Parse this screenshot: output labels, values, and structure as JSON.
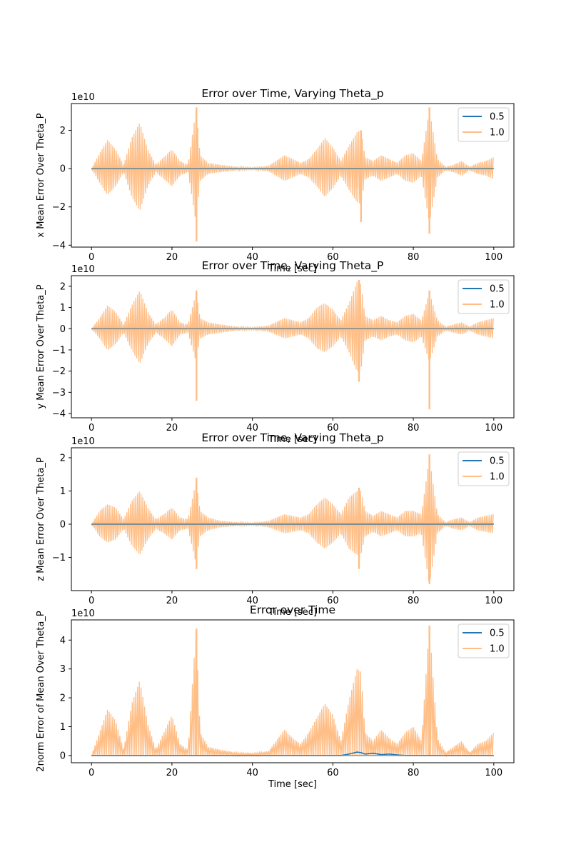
{
  "chart_data": [
    {
      "type": "line",
      "title": "Error over Time, Varying Theta_p",
      "xlabel": "Time [sec]",
      "ylabel": "x Mean Error Over Theta_P",
      "offset_label": "1e10",
      "xlim": [
        -5,
        105
      ],
      "ylim": [
        -4.1,
        3.4
      ],
      "x_ticks": [
        0,
        20,
        40,
        60,
        80,
        100
      ],
      "y_ticks": [
        -4,
        -2,
        0,
        2
      ],
      "legend_position": "upper right",
      "series": [
        {
          "name": "0.5",
          "color": "#1f77b4",
          "envelope": [
            [
              0,
              0
            ],
            [
              100,
              0
            ]
          ]
        },
        {
          "name": "1.0",
          "color": "#ffbe86",
          "envelope": [
            [
              0,
              0
            ],
            [
              2,
              0.8
            ],
            [
              4,
              1.5
            ],
            [
              6,
              1.0
            ],
            [
              8,
              0.2
            ],
            [
              10,
              1.6
            ],
            [
              12,
              2.4
            ],
            [
              14,
              1.0
            ],
            [
              16,
              0.2
            ],
            [
              18,
              0.6
            ],
            [
              20,
              1.0
            ],
            [
              22,
              0.4
            ],
            [
              24,
              0.2
            ],
            [
              26,
              3.1
            ],
            [
              27,
              0.7
            ],
            [
              29,
              0.3
            ],
            [
              32,
              0.2
            ],
            [
              36,
              0.1
            ],
            [
              40,
              0.05
            ],
            [
              44,
              0.15
            ],
            [
              48,
              0.7
            ],
            [
              50,
              0.5
            ],
            [
              52,
              0.3
            ],
            [
              54,
              0.5
            ],
            [
              56,
              1.0
            ],
            [
              58,
              1.6
            ],
            [
              60,
              1.1
            ],
            [
              62,
              0.4
            ],
            [
              64,
              1.2
            ],
            [
              66,
              1.9
            ],
            [
              67,
              2.0
            ],
            [
              68,
              0.6
            ],
            [
              70,
              0.4
            ],
            [
              72,
              0.7
            ],
            [
              74,
              0.5
            ],
            [
              76,
              0.3
            ],
            [
              78,
              0.7
            ],
            [
              80,
              0.8
            ],
            [
              82,
              0.4
            ],
            [
              84,
              3.1
            ],
            [
              86,
              0.5
            ],
            [
              88,
              0.1
            ],
            [
              90,
              0.2
            ],
            [
              92,
              0.4
            ],
            [
              94,
              0.1
            ],
            [
              96,
              0.3
            ],
            [
              98,
              0.4
            ],
            [
              100,
              0.6
            ]
          ]
        }
      ],
      "spikes": [
        {
          "x": 26.1,
          "top": 3.2,
          "bottom": -3.8
        },
        {
          "x": 84.0,
          "top": 3.2,
          "bottom": -3.4
        },
        {
          "x": 67.0,
          "top": 2.0,
          "bottom": -2.8
        }
      ]
    },
    {
      "type": "line",
      "title": "Error over Time, Varying Theta_P",
      "xlabel": "Time [sec]",
      "ylabel": "y Mean Error Over Theta_P",
      "offset_label": "1e10",
      "xlim": [
        -5,
        105
      ],
      "ylim": [
        -4.2,
        2.5
      ],
      "x_ticks": [
        0,
        20,
        40,
        60,
        80,
        100
      ],
      "y_ticks": [
        -4,
        -3,
        -2,
        -1,
        0,
        1,
        2
      ],
      "legend_position": "upper right",
      "series": [
        {
          "name": "0.5",
          "color": "#1f77b4",
          "envelope": [
            [
              0,
              0
            ],
            [
              100,
              0
            ]
          ]
        },
        {
          "name": "1.0",
          "color": "#ffbe86",
          "envelope": [
            [
              0,
              0
            ],
            [
              2,
              0.5
            ],
            [
              4,
              1.1
            ],
            [
              6,
              0.8
            ],
            [
              8,
              0.2
            ],
            [
              10,
              1.1
            ],
            [
              12,
              1.8
            ],
            [
              14,
              0.8
            ],
            [
              16,
              0.2
            ],
            [
              18,
              0.5
            ],
            [
              20,
              0.9
            ],
            [
              22,
              0.3
            ],
            [
              24,
              0.2
            ],
            [
              26,
              1.7
            ],
            [
              27,
              0.5
            ],
            [
              29,
              0.3
            ],
            [
              32,
              0.2
            ],
            [
              36,
              0.1
            ],
            [
              40,
              0.05
            ],
            [
              44,
              0.15
            ],
            [
              48,
              0.5
            ],
            [
              50,
              0.4
            ],
            [
              52,
              0.3
            ],
            [
              54,
              0.5
            ],
            [
              56,
              1.0
            ],
            [
              58,
              1.2
            ],
            [
              60,
              0.9
            ],
            [
              62,
              0.4
            ],
            [
              64,
              1.2
            ],
            [
              66,
              2.2
            ],
            [
              67,
              2.1
            ],
            [
              68,
              0.6
            ],
            [
              70,
              0.4
            ],
            [
              72,
              0.6
            ],
            [
              74,
              0.4
            ],
            [
              76,
              0.3
            ],
            [
              78,
              0.6
            ],
            [
              80,
              0.7
            ],
            [
              82,
              0.4
            ],
            [
              84,
              1.7
            ],
            [
              86,
              0.4
            ],
            [
              88,
              0.1
            ],
            [
              90,
              0.2
            ],
            [
              92,
              0.3
            ],
            [
              94,
              0.1
            ],
            [
              96,
              0.3
            ],
            [
              98,
              0.4
            ],
            [
              100,
              0.5
            ]
          ]
        }
      ],
      "spikes": [
        {
          "x": 26.1,
          "top": 1.8,
          "bottom": -3.4
        },
        {
          "x": 84.0,
          "top": 1.8,
          "bottom": -3.8
        },
        {
          "x": 66.5,
          "top": 2.3,
          "bottom": -2.5
        }
      ]
    },
    {
      "type": "line",
      "title": "Error over Time, Varying Theta_p",
      "xlabel": "Time [sec]",
      "ylabel": "z Mean Error Over Theta_P",
      "offset_label": "1e10",
      "xlim": [
        -5,
        105
      ],
      "ylim": [
        -2.0,
        2.3
      ],
      "x_ticks": [
        0,
        20,
        40,
        60,
        80,
        100
      ],
      "y_ticks": [
        -1,
        0,
        1,
        2
      ],
      "legend_position": "upper right",
      "series": [
        {
          "name": "0.5",
          "color": "#1f77b4",
          "envelope": [
            [
              0,
              0
            ],
            [
              100,
              0
            ]
          ]
        },
        {
          "name": "1.0",
          "color": "#ffbe86",
          "envelope": [
            [
              0,
              0
            ],
            [
              2,
              0.4
            ],
            [
              4,
              0.6
            ],
            [
              6,
              0.5
            ],
            [
              8,
              0.15
            ],
            [
              10,
              0.7
            ],
            [
              12,
              1.0
            ],
            [
              14,
              0.5
            ],
            [
              16,
              0.15
            ],
            [
              18,
              0.3
            ],
            [
              20,
              0.5
            ],
            [
              22,
              0.2
            ],
            [
              24,
              0.15
            ],
            [
              26,
              1.3
            ],
            [
              27,
              0.4
            ],
            [
              29,
              0.2
            ],
            [
              32,
              0.1
            ],
            [
              36,
              0.06
            ],
            [
              40,
              0.03
            ],
            [
              44,
              0.1
            ],
            [
              48,
              0.3
            ],
            [
              50,
              0.25
            ],
            [
              52,
              0.2
            ],
            [
              54,
              0.3
            ],
            [
              56,
              0.6
            ],
            [
              58,
              0.8
            ],
            [
              60,
              0.6
            ],
            [
              62,
              0.3
            ],
            [
              64,
              0.8
            ],
            [
              66,
              1.0
            ],
            [
              67,
              1.0
            ],
            [
              68,
              0.4
            ],
            [
              70,
              0.25
            ],
            [
              72,
              0.4
            ],
            [
              74,
              0.3
            ],
            [
              76,
              0.2
            ],
            [
              78,
              0.4
            ],
            [
              80,
              0.4
            ],
            [
              82,
              0.3
            ],
            [
              84,
              2.0
            ],
            [
              86,
              0.3
            ],
            [
              88,
              0.06
            ],
            [
              90,
              0.15
            ],
            [
              92,
              0.2
            ],
            [
              94,
              0.06
            ],
            [
              96,
              0.2
            ],
            [
              98,
              0.25
            ],
            [
              100,
              0.3
            ]
          ]
        }
      ],
      "spikes": [
        {
          "x": 26.1,
          "top": 1.4,
          "bottom": -1.35
        },
        {
          "x": 84.0,
          "top": 2.1,
          "bottom": -1.8
        },
        {
          "x": 66.5,
          "top": 1.1,
          "bottom": -1.35
        }
      ]
    },
    {
      "type": "line",
      "title": "Error over Time",
      "xlabel": "Time [sec]",
      "ylabel": "2norm Error of Mean Over Theta_P",
      "offset_label": "1e10",
      "xlim": [
        -5,
        105
      ],
      "ylim": [
        -0.25,
        4.7
      ],
      "x_ticks": [
        0,
        20,
        40,
        60,
        80,
        100
      ],
      "y_ticks": [
        0,
        1,
        2,
        3,
        4
      ],
      "legend_position": "upper right",
      "series": [
        {
          "name": "0.5",
          "color": "#1f77b4",
          "envelope": [
            [
              0,
              0
            ],
            [
              62,
              0
            ],
            [
              64,
              0.05
            ],
            [
              66,
              0.12
            ],
            [
              67,
              0.1
            ],
            [
              68,
              0.05
            ],
            [
              70,
              0.08
            ],
            [
              72,
              0.03
            ],
            [
              74,
              0.05
            ],
            [
              76,
              0.02
            ],
            [
              78,
              0
            ],
            [
              100,
              0
            ]
          ]
        },
        {
          "name": "1.0",
          "color": "#ffbe86",
          "envelope": [
            [
              0,
              0
            ],
            [
              2,
              0.8
            ],
            [
              4,
              1.6
            ],
            [
              6,
              1.2
            ],
            [
              8,
              0.2
            ],
            [
              10,
              1.8
            ],
            [
              12,
              2.6
            ],
            [
              14,
              1.1
            ],
            [
              16,
              0.2
            ],
            [
              18,
              0.8
            ],
            [
              20,
              1.4
            ],
            [
              22,
              0.4
            ],
            [
              24,
              0.2
            ],
            [
              26,
              4.4
            ],
            [
              27,
              0.8
            ],
            [
              29,
              0.3
            ],
            [
              32,
              0.2
            ],
            [
              36,
              0.1
            ],
            [
              40,
              0.07
            ],
            [
              44,
              0.15
            ],
            [
              48,
              0.9
            ],
            [
              50,
              0.6
            ],
            [
              52,
              0.4
            ],
            [
              54,
              0.8
            ],
            [
              56,
              1.3
            ],
            [
              58,
              1.8
            ],
            [
              60,
              1.4
            ],
            [
              62,
              0.5
            ],
            [
              64,
              1.9
            ],
            [
              66,
              3.0
            ],
            [
              67,
              2.9
            ],
            [
              68,
              0.8
            ],
            [
              70,
              0.5
            ],
            [
              72,
              0.9
            ],
            [
              74,
              0.6
            ],
            [
              76,
              0.4
            ],
            [
              78,
              0.8
            ],
            [
              80,
              1.0
            ],
            [
              82,
              0.5
            ],
            [
              84,
              4.5
            ],
            [
              86,
              0.6
            ],
            [
              88,
              0.1
            ],
            [
              90,
              0.3
            ],
            [
              92,
              0.5
            ],
            [
              94,
              0.1
            ],
            [
              96,
              0.4
            ],
            [
              98,
              0.5
            ],
            [
              100,
              0.8
            ]
          ]
        }
      ],
      "spikes": [
        {
          "x": 26.1,
          "top": 4.4,
          "bottom": 0
        },
        {
          "x": 84.0,
          "top": 4.5,
          "bottom": 0
        }
      ]
    }
  ]
}
